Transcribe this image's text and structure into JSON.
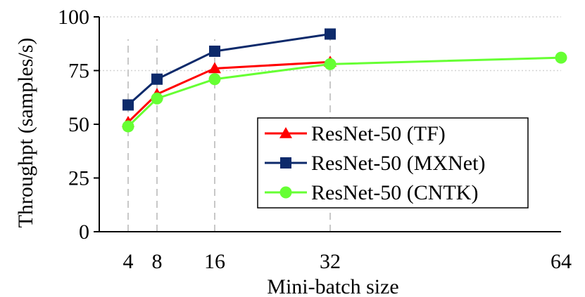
{
  "chart_data": {
    "type": "line",
    "title": "",
    "xlabel": "Mini-batch size",
    "ylabel": "Throughpt (samples/s)",
    "x_ticks": [
      "4",
      "8",
      "16",
      "32",
      "64"
    ],
    "y_ticks": [
      "0",
      "25",
      "50",
      "75",
      "100"
    ],
    "xlim": [
      0,
      64
    ],
    "ylim": [
      0,
      100
    ],
    "x_gridlines_at": [
      4,
      8,
      16,
      32
    ],
    "y_gridlines_at": [
      75,
      100
    ],
    "legend_placement": "center-right",
    "series": [
      {
        "name": "ResNet-50 (TF)",
        "color": "#ff0000",
        "marker": "triangle",
        "x": [
          4,
          8,
          16,
          32
        ],
        "values": [
          51,
          64,
          76,
          79
        ]
      },
      {
        "name": "ResNet-50 (MXNet)",
        "color": "#0d2a6b",
        "marker": "square",
        "x": [
          4,
          8,
          16,
          32
        ],
        "values": [
          59,
          71,
          84,
          92
        ]
      },
      {
        "name": "ResNet-50 (CNTK)",
        "color": "#66ff33",
        "marker": "circle",
        "x": [
          4,
          8,
          16,
          32,
          64
        ],
        "values": [
          49,
          62,
          71,
          78,
          81
        ]
      }
    ]
  }
}
